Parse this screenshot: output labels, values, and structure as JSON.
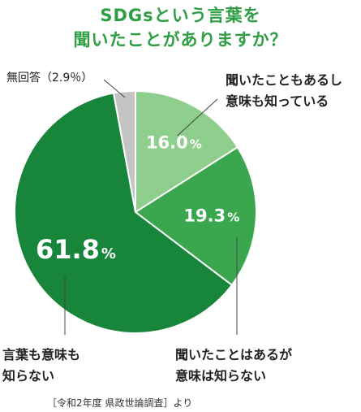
{
  "title_lines": [
    "SDGsという言葉を",
    "聞いたことがありますか？"
  ],
  "chart_data": {
    "type": "pie",
    "slices": [
      {
        "label": "聞いたこともあるし意味も知っている",
        "label_lines": [
          "聞いたこともあるし",
          "意味も知っている"
        ],
        "value": 16.0,
        "value_text": "16.0",
        "color": "#8ecf8e"
      },
      {
        "label": "聞いたことはあるが意味は知らない",
        "label_lines": [
          "聞いたことはあるが",
          "意味は知らない"
        ],
        "value": 19.3,
        "value_text": "19.3",
        "color": "#3aa74f"
      },
      {
        "label": "言葉も意味も知らない",
        "label_lines": [
          "言葉も意味も",
          "知らない"
        ],
        "value": 61.8,
        "value_text": "61.8",
        "color": "#17863a"
      },
      {
        "label": "無回答",
        "label_lines": [
          "無回答（2.9％）"
        ],
        "value": 2.9,
        "value_text": "2.9",
        "color": "#c4c4c4"
      }
    ],
    "unit": "%",
    "start_angle_deg": 0,
    "direction": "clockwise"
  },
  "source": "［令和2年度 県政世論調査］より"
}
